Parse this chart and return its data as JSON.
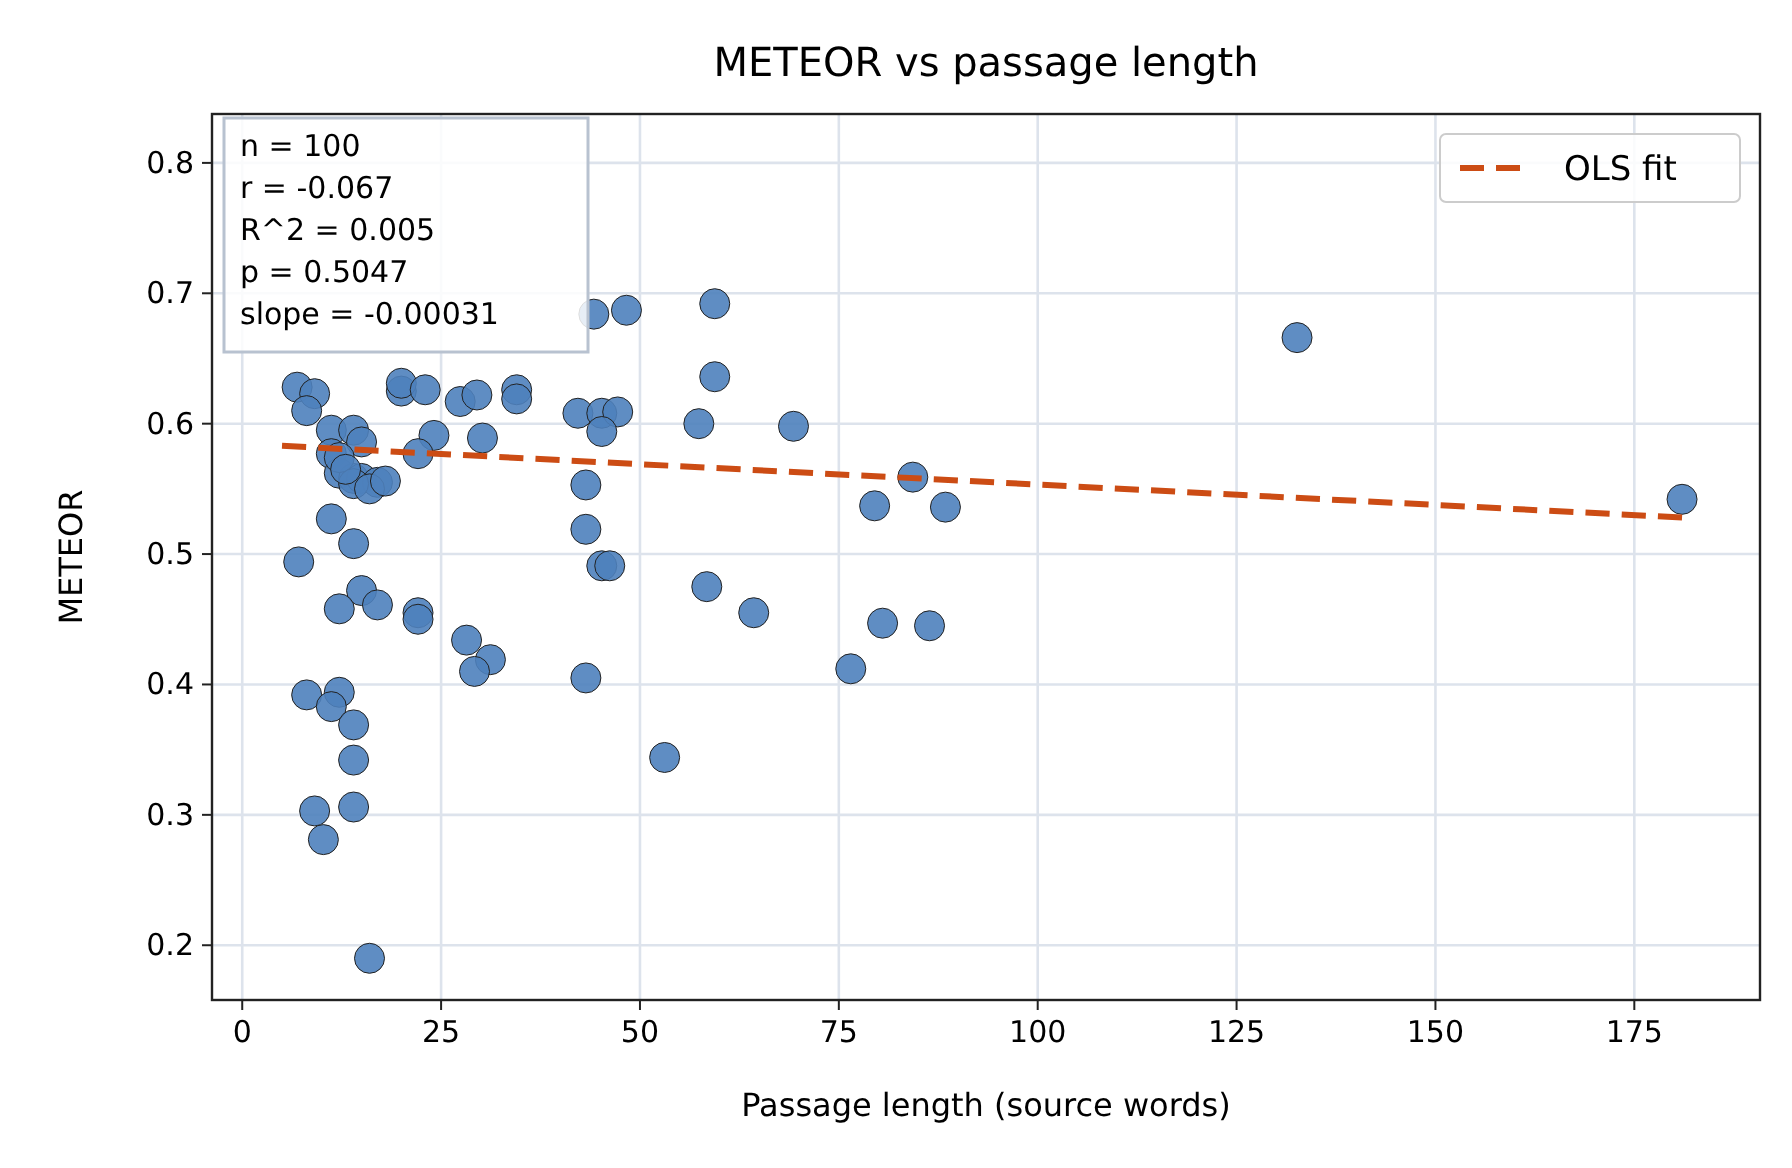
{
  "chart_data": {
    "type": "scatter",
    "title": "METEOR vs passage length",
    "xlabel": "Passage length (source words)",
    "ylabel": "METEOR",
    "xlim": [
      -3.8,
      190.8
    ],
    "ylim": [
      0.158,
      0.8375
    ],
    "xticks": [
      0,
      25,
      50,
      75,
      100,
      125,
      150,
      175
    ],
    "yticks": [
      0.2,
      0.3,
      0.4,
      0.5,
      0.6,
      0.7,
      0.8
    ],
    "grid": true,
    "legend": "top right",
    "annotations": [
      "n = 100\nr = -0.067\nR^2 = 0.005\np = 0.5047\nslope = -0.00031"
    ],
    "series": [
      {
        "marker": "circle",
        "color": "#4e81bd",
        "x": [
          6.9,
          9.1,
          8.1,
          11.2,
          14,
          15,
          11.2,
          12.2,
          14,
          15,
          17,
          20,
          20,
          23,
          27.4,
          29.5,
          30.2,
          24.1,
          22.1,
          34.5,
          34.5,
          42.2,
          45.2,
          47.2,
          45.2,
          57.4,
          69.3,
          44.2,
          48.3,
          59.4,
          59.4,
          43.2,
          43.2,
          45.2,
          46.2,
          58.4,
          64.3,
          43.2,
          76.5,
          80.5,
          86.4,
          79.5,
          84.3,
          88.4,
          132.6,
          181,
          11.2,
          14,
          7.1,
          15,
          12.2,
          17,
          22.1,
          22.1,
          28.2,
          31.2,
          29.2,
          8.1,
          12.2,
          11.2,
          14,
          14,
          9.1,
          14,
          10.2,
          16,
          53.1,
          12.2,
          14,
          16,
          18,
          13
        ],
        "values": [
          0.628,
          0.623,
          0.61,
          0.595,
          0.595,
          0.586,
          0.577,
          0.562,
          0.558,
          0.558,
          0.555,
          0.625,
          0.631,
          0.626,
          0.617,
          0.622,
          0.589,
          0.591,
          0.577,
          0.626,
          0.619,
          0.608,
          0.608,
          0.609,
          0.594,
          0.6,
          0.598,
          0.684,
          0.687,
          0.692,
          0.636,
          0.553,
          0.519,
          0.491,
          0.491,
          0.475,
          0.455,
          0.405,
          0.412,
          0.447,
          0.445,
          0.537,
          0.559,
          0.536,
          0.666,
          0.542,
          0.527,
          0.508,
          0.494,
          0.472,
          0.458,
          0.461,
          0.455,
          0.45,
          0.434,
          0.419,
          0.41,
          0.392,
          0.394,
          0.383,
          0.369,
          0.342,
          0.303,
          0.306,
          0.281,
          0.19,
          0.344,
          0.574,
          0.554,
          0.55,
          0.556,
          0.565
        ]
      },
      {
        "type": "line",
        "name": "OLS fit",
        "color": "#cc4c14",
        "line_style": "dashed",
        "x": [
          5,
          181
        ],
        "values": [
          0.583,
          0.528
        ]
      }
    ]
  }
}
